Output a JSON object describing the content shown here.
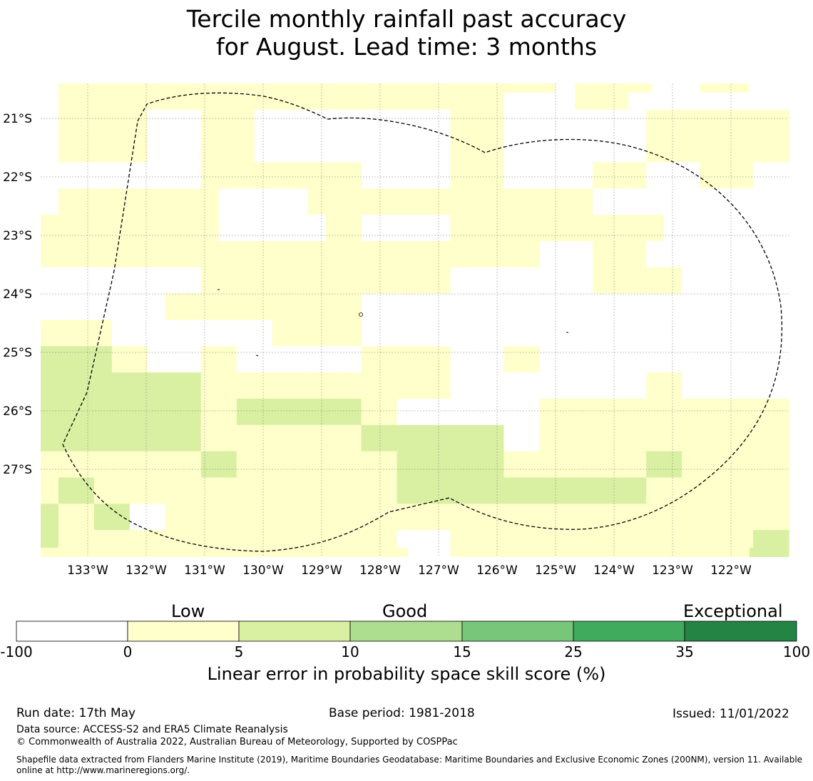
{
  "title": {
    "line1": "Tercile monthly rainfall past accuracy",
    "line2": "for August. Lead time: 3 months"
  },
  "map": {
    "lat_labels": [
      "21°S",
      "22°S",
      "23°S",
      "24°S",
      "25°S",
      "26°S",
      "27°S"
    ],
    "lon_labels": [
      "133°W",
      "132°W",
      "131°W",
      "130°W",
      "129°W",
      "128°W",
      "127°W",
      "126°W",
      "125°W",
      "124°W",
      "123°W",
      "122°W"
    ],
    "grid": "on",
    "boundary_style": "dashed",
    "category_colors": [
      "#ffffff",
      "#ffffcc",
      "#d9f0a3",
      "#addd8e",
      "#78c679",
      "#41ab5d",
      "#238443"
    ],
    "cell_categories": [
      [
        0,
        1,
        1,
        1,
        1,
        1,
        1,
        1,
        1,
        1,
        1,
        1,
        1,
        1,
        1,
        1,
        1,
        1,
        1,
        1,
        1,
        1,
        1,
        1,
        1,
        1,
        0,
        0,
        0,
        0,
        1,
        1,
        1,
        0,
        0,
        0,
        0,
        0,
        0,
        0,
        0,
        0
      ],
      [
        0,
        1,
        1,
        1,
        1,
        1,
        0,
        0,
        0,
        1,
        1,
        1,
        0,
        0,
        0,
        0,
        0,
        0,
        0,
        0,
        0,
        0,
        0,
        1,
        1,
        1,
        0,
        0,
        0,
        0,
        0,
        0,
        0,
        0,
        1,
        1,
        1,
        1,
        1,
        1,
        1,
        1
      ],
      [
        0,
        1,
        1,
        1,
        1,
        1,
        0,
        0,
        0,
        1,
        1,
        1,
        0,
        0,
        0,
        0,
        0,
        0,
        0,
        0,
        0,
        0,
        0,
        1,
        1,
        1,
        0,
        0,
        0,
        0,
        0,
        0,
        0,
        0,
        1,
        1,
        1,
        1,
        1,
        1,
        1,
        1
      ],
      [
        0,
        0,
        0,
        0,
        0,
        0,
        0,
        0,
        0,
        1,
        1,
        1,
        1,
        1,
        1,
        1,
        1,
        1,
        0,
        0,
        0,
        0,
        0,
        1,
        1,
        1,
        0,
        0,
        0,
        0,
        0,
        1,
        1,
        1,
        0,
        0,
        0,
        1,
        1,
        1,
        0,
        0
      ],
      [
        0,
        1,
        1,
        1,
        1,
        1,
        1,
        1,
        1,
        1,
        0,
        0,
        0,
        0,
        0,
        1,
        1,
        1,
        1,
        1,
        1,
        1,
        1,
        1,
        1,
        1,
        1,
        1,
        1,
        1,
        1,
        0,
        0,
        0,
        0,
        0,
        0,
        0,
        0,
        0,
        0,
        0
      ],
      [
        1,
        1,
        1,
        1,
        1,
        1,
        1,
        1,
        1,
        1,
        0,
        0,
        0,
        0,
        0,
        0,
        1,
        1,
        0,
        0,
        0,
        0,
        0,
        1,
        1,
        1,
        1,
        1,
        1,
        1,
        1,
        1,
        1,
        1,
        1,
        0,
        0,
        0,
        0,
        0,
        0,
        0
      ],
      [
        1,
        1,
        1,
        1,
        1,
        1,
        1,
        1,
        1,
        1,
        1,
        1,
        1,
        1,
        1,
        1,
        1,
        1,
        1,
        1,
        1,
        1,
        1,
        1,
        1,
        1,
        1,
        1,
        0,
        0,
        0,
        1,
        1,
        1,
        0,
        0,
        0,
        0,
        0,
        0,
        0,
        0
      ],
      [
        0,
        0,
        0,
        0,
        0,
        0,
        0,
        0,
        0,
        1,
        1,
        1,
        1,
        1,
        1,
        1,
        1,
        1,
        1,
        1,
        1,
        1,
        1,
        0,
        0,
        0,
        0,
        0,
        0,
        0,
        0,
        1,
        1,
        1,
        1,
        1,
        0,
        0,
        0,
        0,
        0,
        0
      ],
      [
        0,
        0,
        0,
        0,
        0,
        0,
        0,
        1,
        1,
        1,
        1,
        1,
        1,
        1,
        1,
        1,
        1,
        1,
        0,
        0,
        0,
        0,
        0,
        0,
        0,
        0,
        0,
        0,
        0,
        0,
        0,
        0,
        0,
        0,
        0,
        0,
        0,
        0,
        0,
        0,
        0,
        0
      ],
      [
        1,
        1,
        1,
        1,
        0,
        0,
        0,
        0,
        0,
        0,
        0,
        0,
        0,
        1,
        1,
        1,
        1,
        1,
        0,
        0,
        0,
        0,
        0,
        0,
        0,
        0,
        0,
        0,
        0,
        0,
        0,
        0,
        0,
        0,
        0,
        0,
        0,
        0,
        0,
        0,
        0,
        0
      ],
      [
        2,
        2,
        2,
        2,
        1,
        1,
        0,
        0,
        0,
        1,
        1,
        0,
        0,
        0,
        0,
        0,
        0,
        0,
        1,
        1,
        1,
        1,
        1,
        0,
        0,
        0,
        1,
        1,
        0,
        0,
        0,
        0,
        0,
        0,
        0,
        0,
        0,
        0,
        0,
        0,
        0,
        0
      ],
      [
        2,
        2,
        2,
        2,
        2,
        2,
        2,
        2,
        2,
        1,
        1,
        1,
        1,
        1,
        1,
        1,
        1,
        1,
        1,
        1,
        1,
        1,
        1,
        0,
        0,
        0,
        0,
        0,
        0,
        0,
        0,
        0,
        0,
        0,
        1,
        1,
        0,
        0,
        0,
        0,
        0,
        0
      ],
      [
        2,
        2,
        2,
        2,
        2,
        2,
        2,
        2,
        2,
        1,
        1,
        2,
        2,
        2,
        2,
        2,
        2,
        2,
        1,
        1,
        0,
        0,
        0,
        0,
        0,
        0,
        0,
        0,
        1,
        1,
        1,
        1,
        1,
        1,
        1,
        1,
        1,
        1,
        1,
        1,
        1,
        1
      ],
      [
        2,
        2,
        2,
        2,
        2,
        2,
        2,
        2,
        2,
        1,
        1,
        1,
        1,
        1,
        1,
        1,
        1,
        1,
        2,
        2,
        2,
        2,
        2,
        2,
        2,
        2,
        0,
        0,
        1,
        1,
        1,
        1,
        1,
        1,
        1,
        1,
        1,
        1,
        1,
        1,
        1,
        1
      ],
      [
        1,
        1,
        1,
        1,
        1,
        1,
        1,
        1,
        1,
        2,
        2,
        1,
        1,
        1,
        1,
        1,
        1,
        1,
        1,
        1,
        2,
        2,
        2,
        2,
        2,
        2,
        1,
        1,
        1,
        1,
        1,
        1,
        1,
        1,
        2,
        2,
        1,
        1,
        1,
        1,
        1,
        1
      ],
      [
        1,
        2,
        2,
        1,
        1,
        1,
        1,
        1,
        1,
        1,
        1,
        1,
        1,
        1,
        1,
        1,
        1,
        1,
        1,
        1,
        2,
        2,
        2,
        2,
        2,
        2,
        2,
        2,
        2,
        2,
        2,
        2,
        2,
        2,
        1,
        1,
        1,
        1,
        1,
        1,
        1,
        1
      ],
      [
        2,
        1,
        1,
        2,
        2,
        0,
        0,
        1,
        1,
        1,
        1,
        1,
        1,
        1,
        1,
        1,
        1,
        1,
        1,
        1,
        1,
        1,
        1,
        1,
        1,
        1,
        1,
        1,
        1,
        1,
        1,
        1,
        1,
        1,
        1,
        1,
        1,
        1,
        1,
        1,
        1,
        1
      ],
      [
        2,
        1,
        1,
        1,
        1,
        1,
        1,
        1,
        1,
        1,
        1,
        1,
        1,
        1,
        1,
        1,
        1,
        1,
        1,
        1,
        0,
        0,
        0,
        1,
        1,
        1,
        1,
        1,
        1,
        1,
        1,
        1,
        1,
        1,
        1,
        1,
        1,
        1,
        1,
        1,
        2,
        2
      ]
    ]
  },
  "legend": {
    "categories": [
      "Low",
      "Good",
      "Exceptional"
    ],
    "ticks": [
      "-100",
      "0",
      "5",
      "10",
      "15",
      "25",
      "35",
      "100"
    ],
    "colors": [
      "#ffffff",
      "#ffffcc",
      "#d9f0a3",
      "#addd8e",
      "#78c679",
      "#41ab5d",
      "#238443"
    ],
    "label": "Linear error in probability space skill score (%)"
  },
  "footer": {
    "run_date": "Run date: 17th May",
    "base_period": "Base period: 1981-2018",
    "issued": "Issued: 11/01/2022",
    "data_source": "Data source: ACCESS-S2 and ERA5 Climate Reanalysis",
    "copyright": "© Commonwealth of Australia 2022, Australian Bureau of Meteorology, Supported by COSPPac",
    "shapefile": "Shapefile data extracted from Flanders Marine Institute (2019), Maritime Boundaries Geodatabase: Maritime Boundaries and Exclusive Economic Zones (200NM), version 11. Available online at http://www.marineregions.org/."
  }
}
